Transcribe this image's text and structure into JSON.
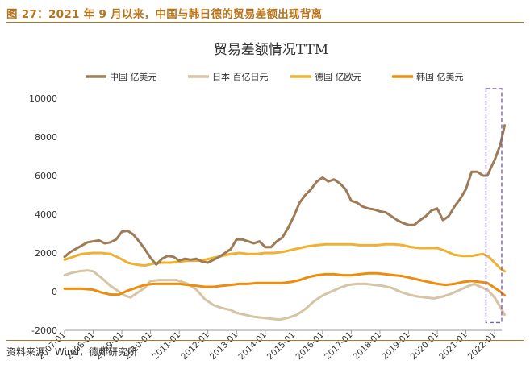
{
  "caption": "图 27：2021 年 9 月以来，中国与韩日德的贸易差额出现背离",
  "source": "资料来源：Wind，德邦研究所",
  "colors": {
    "china": "#9c7b56",
    "japan": "#d6c4a4",
    "germany": "#f0b030",
    "korea": "#ee8c0c",
    "highlight_box": "#7a5fb8",
    "frame": "#b8741a"
  },
  "chart_data": {
    "type": "line",
    "title": "贸易差额情况TTM",
    "legend_position": "top",
    "grid": false,
    "ylim": [
      -2000,
      10000
    ],
    "yticks": [
      -2000,
      0,
      2000,
      4000,
      6000,
      8000,
      10000
    ],
    "xlim": [
      2007.0,
      2022.25
    ],
    "xticks": [
      {
        "x": 2007,
        "label": "2007-01"
      },
      {
        "x": 2008,
        "label": "2008-01"
      },
      {
        "x": 2009,
        "label": "2009-01"
      },
      {
        "x": 2010,
        "label": "2010-01"
      },
      {
        "x": 2011,
        "label": "2011-01"
      },
      {
        "x": 2012,
        "label": "2012-01"
      },
      {
        "x": 2013,
        "label": "2013-01"
      },
      {
        "x": 2014,
        "label": "2014-01"
      },
      {
        "x": 2015,
        "label": "2015-01"
      },
      {
        "x": 2016,
        "label": "2016-01"
      },
      {
        "x": 2017,
        "label": "2017-01"
      },
      {
        "x": 2018,
        "label": "2018-01"
      },
      {
        "x": 2019,
        "label": "2019-01"
      },
      {
        "x": 2020,
        "label": "2020-01"
      },
      {
        "x": 2021,
        "label": "2021-01"
      },
      {
        "x": 2022,
        "label": "2022-01"
      }
    ],
    "highlight": {
      "x_from": 2021.7,
      "x_to": 2022.25,
      "y_from": -1600,
      "y_to": 10500
    },
    "series": [
      {
        "name": "中国 亿美元",
        "key": "china",
        "points": [
          [
            2007.0,
            1800
          ],
          [
            2007.2,
            2050
          ],
          [
            2007.5,
            2300
          ],
          [
            2007.8,
            2550
          ],
          [
            2008.0,
            2600
          ],
          [
            2008.2,
            2650
          ],
          [
            2008.4,
            2500
          ],
          [
            2008.6,
            2550
          ],
          [
            2008.8,
            2700
          ],
          [
            2009.0,
            3100
          ],
          [
            2009.2,
            3150
          ],
          [
            2009.4,
            2950
          ],
          [
            2009.6,
            2600
          ],
          [
            2009.8,
            2200
          ],
          [
            2010.0,
            1750
          ],
          [
            2010.2,
            1400
          ],
          [
            2010.4,
            1700
          ],
          [
            2010.6,
            1850
          ],
          [
            2010.8,
            1800
          ],
          [
            2011.0,
            1600
          ],
          [
            2011.2,
            1700
          ],
          [
            2011.4,
            1650
          ],
          [
            2011.6,
            1700
          ],
          [
            2011.8,
            1550
          ],
          [
            2012.0,
            1500
          ],
          [
            2012.2,
            1650
          ],
          [
            2012.4,
            1800
          ],
          [
            2012.6,
            2000
          ],
          [
            2012.8,
            2200
          ],
          [
            2013.0,
            2700
          ],
          [
            2013.2,
            2700
          ],
          [
            2013.4,
            2600
          ],
          [
            2013.6,
            2500
          ],
          [
            2013.8,
            2600
          ],
          [
            2014.0,
            2300
          ],
          [
            2014.2,
            2300
          ],
          [
            2014.4,
            2600
          ],
          [
            2014.6,
            2800
          ],
          [
            2014.8,
            3300
          ],
          [
            2015.0,
            3900
          ],
          [
            2015.2,
            4600
          ],
          [
            2015.4,
            5000
          ],
          [
            2015.6,
            5300
          ],
          [
            2015.8,
            5700
          ],
          [
            2016.0,
            5900
          ],
          [
            2016.2,
            5700
          ],
          [
            2016.4,
            5800
          ],
          [
            2016.6,
            5600
          ],
          [
            2016.8,
            5300
          ],
          [
            2017.0,
            4700
          ],
          [
            2017.2,
            4600
          ],
          [
            2017.4,
            4400
          ],
          [
            2017.6,
            4300
          ],
          [
            2017.8,
            4250
          ],
          [
            2018.0,
            4150
          ],
          [
            2018.2,
            4100
          ],
          [
            2018.4,
            3900
          ],
          [
            2018.6,
            3700
          ],
          [
            2018.8,
            3550
          ],
          [
            2019.0,
            3450
          ],
          [
            2019.2,
            3450
          ],
          [
            2019.4,
            3700
          ],
          [
            2019.6,
            3900
          ],
          [
            2019.8,
            4200
          ],
          [
            2020.0,
            4300
          ],
          [
            2020.2,
            3700
          ],
          [
            2020.4,
            3900
          ],
          [
            2020.6,
            4400
          ],
          [
            2020.8,
            4800
          ],
          [
            2021.0,
            5300
          ],
          [
            2021.2,
            6200
          ],
          [
            2021.4,
            6200
          ],
          [
            2021.6,
            6000
          ],
          [
            2021.75,
            6000
          ],
          [
            2021.9,
            6500
          ],
          [
            2022.0,
            6800
          ],
          [
            2022.2,
            7600
          ],
          [
            2022.35,
            8600
          ]
        ]
      },
      {
        "name": "日本 百亿日元",
        "key": "japan",
        "points": [
          [
            2007.0,
            850
          ],
          [
            2007.2,
            950
          ],
          [
            2007.5,
            1050
          ],
          [
            2007.8,
            1100
          ],
          [
            2008.0,
            1050
          ],
          [
            2008.3,
            700
          ],
          [
            2008.6,
            300
          ],
          [
            2008.9,
            0
          ],
          [
            2009.1,
            -200
          ],
          [
            2009.3,
            -300
          ],
          [
            2009.5,
            -100
          ],
          [
            2009.8,
            200
          ],
          [
            2010.0,
            550
          ],
          [
            2010.3,
            600
          ],
          [
            2010.6,
            600
          ],
          [
            2010.9,
            600
          ],
          [
            2011.0,
            550
          ],
          [
            2011.3,
            400
          ],
          [
            2011.6,
            100
          ],
          [
            2011.9,
            -400
          ],
          [
            2012.2,
            -700
          ],
          [
            2012.5,
            -850
          ],
          [
            2012.8,
            -950
          ],
          [
            2013.0,
            -1100
          ],
          [
            2013.3,
            -1200
          ],
          [
            2013.6,
            -1300
          ],
          [
            2013.9,
            -1350
          ],
          [
            2014.2,
            -1400
          ],
          [
            2014.5,
            -1450
          ],
          [
            2014.8,
            -1350
          ],
          [
            2015.1,
            -1200
          ],
          [
            2015.4,
            -900
          ],
          [
            2015.7,
            -500
          ],
          [
            2016.0,
            -200
          ],
          [
            2016.3,
            0
          ],
          [
            2016.6,
            200
          ],
          [
            2016.9,
            350
          ],
          [
            2017.2,
            400
          ],
          [
            2017.5,
            400
          ],
          [
            2017.8,
            350
          ],
          [
            2018.1,
            300
          ],
          [
            2018.4,
            200
          ],
          [
            2018.7,
            0
          ],
          [
            2019.0,
            -150
          ],
          [
            2019.3,
            -250
          ],
          [
            2019.6,
            -300
          ],
          [
            2019.9,
            -350
          ],
          [
            2020.2,
            -250
          ],
          [
            2020.5,
            -100
          ],
          [
            2020.8,
            100
          ],
          [
            2021.1,
            300
          ],
          [
            2021.3,
            400
          ],
          [
            2021.5,
            250
          ],
          [
            2021.75,
            100
          ],
          [
            2022.0,
            -300
          ],
          [
            2022.2,
            -800
          ],
          [
            2022.35,
            -1200
          ]
        ]
      },
      {
        "name": "德国 亿欧元",
        "key": "germany",
        "points": [
          [
            2007.0,
            1650
          ],
          [
            2007.3,
            1800
          ],
          [
            2007.6,
            1950
          ],
          [
            2008.0,
            2000
          ],
          [
            2008.3,
            2000
          ],
          [
            2008.6,
            1950
          ],
          [
            2008.9,
            1750
          ],
          [
            2009.2,
            1500
          ],
          [
            2009.5,
            1400
          ],
          [
            2009.8,
            1350
          ],
          [
            2010.1,
            1450
          ],
          [
            2010.4,
            1500
          ],
          [
            2010.7,
            1500
          ],
          [
            2011.0,
            1550
          ],
          [
            2011.3,
            1600
          ],
          [
            2011.6,
            1600
          ],
          [
            2011.9,
            1650
          ],
          [
            2012.2,
            1750
          ],
          [
            2012.5,
            1850
          ],
          [
            2012.8,
            1950
          ],
          [
            2013.1,
            2000
          ],
          [
            2013.4,
            1950
          ],
          [
            2013.7,
            1950
          ],
          [
            2014.0,
            2000
          ],
          [
            2014.3,
            2000
          ],
          [
            2014.6,
            2050
          ],
          [
            2014.9,
            2150
          ],
          [
            2015.2,
            2250
          ],
          [
            2015.5,
            2350
          ],
          [
            2015.8,
            2400
          ],
          [
            2016.1,
            2450
          ],
          [
            2016.4,
            2450
          ],
          [
            2016.7,
            2450
          ],
          [
            2017.0,
            2450
          ],
          [
            2017.3,
            2400
          ],
          [
            2017.6,
            2400
          ],
          [
            2017.9,
            2400
          ],
          [
            2018.2,
            2450
          ],
          [
            2018.5,
            2450
          ],
          [
            2018.8,
            2400
          ],
          [
            2019.1,
            2300
          ],
          [
            2019.4,
            2250
          ],
          [
            2019.7,
            2250
          ],
          [
            2020.0,
            2250
          ],
          [
            2020.3,
            2100
          ],
          [
            2020.6,
            1900
          ],
          [
            2020.9,
            1850
          ],
          [
            2021.2,
            1850
          ],
          [
            2021.4,
            1900
          ],
          [
            2021.6,
            1950
          ],
          [
            2021.8,
            1800
          ],
          [
            2022.0,
            1500
          ],
          [
            2022.2,
            1200
          ],
          [
            2022.35,
            1050
          ]
        ]
      },
      {
        "name": "韩国 亿美元",
        "key": "korea",
        "points": [
          [
            2007.0,
            150
          ],
          [
            2007.3,
            150
          ],
          [
            2007.6,
            150
          ],
          [
            2008.0,
            100
          ],
          [
            2008.3,
            -50
          ],
          [
            2008.6,
            -150
          ],
          [
            2008.9,
            -150
          ],
          [
            2009.2,
            50
          ],
          [
            2009.5,
            200
          ],
          [
            2009.8,
            350
          ],
          [
            2010.1,
            400
          ],
          [
            2010.4,
            400
          ],
          [
            2010.7,
            400
          ],
          [
            2011.0,
            400
          ],
          [
            2011.3,
            350
          ],
          [
            2011.6,
            300
          ],
          [
            2011.9,
            250
          ],
          [
            2012.2,
            250
          ],
          [
            2012.5,
            300
          ],
          [
            2012.8,
            350
          ],
          [
            2013.1,
            400
          ],
          [
            2013.4,
            400
          ],
          [
            2013.7,
            450
          ],
          [
            2014.0,
            450
          ],
          [
            2014.3,
            450
          ],
          [
            2014.6,
            450
          ],
          [
            2014.9,
            500
          ],
          [
            2015.2,
            600
          ],
          [
            2015.5,
            750
          ],
          [
            2015.8,
            850
          ],
          [
            2016.1,
            900
          ],
          [
            2016.4,
            900
          ],
          [
            2016.7,
            850
          ],
          [
            2017.0,
            850
          ],
          [
            2017.3,
            900
          ],
          [
            2017.6,
            950
          ],
          [
            2017.9,
            950
          ],
          [
            2018.2,
            900
          ],
          [
            2018.5,
            850
          ],
          [
            2018.8,
            800
          ],
          [
            2019.1,
            700
          ],
          [
            2019.4,
            600
          ],
          [
            2019.7,
            500
          ],
          [
            2020.0,
            400
          ],
          [
            2020.3,
            350
          ],
          [
            2020.6,
            400
          ],
          [
            2020.9,
            500
          ],
          [
            2021.2,
            550
          ],
          [
            2021.5,
            500
          ],
          [
            2021.75,
            450
          ],
          [
            2022.0,
            200
          ],
          [
            2022.2,
            0
          ],
          [
            2022.35,
            -200
          ]
        ]
      }
    ]
  }
}
